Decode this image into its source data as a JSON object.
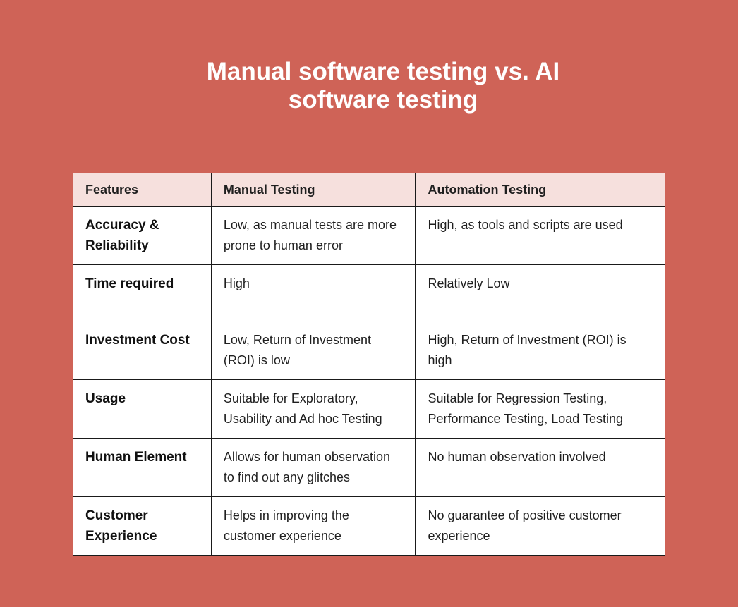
{
  "title": {
    "line1": "Manual software testing vs. AI",
    "line2": "software testing"
  },
  "colors": {
    "background": "#CF6357",
    "header_bg": "#F6E0DD"
  },
  "table": {
    "headers": [
      "Features",
      "Manual Testing",
      "Automation Testing"
    ],
    "rows": [
      [
        "Accuracy & Reliability",
        "Low, as manual tests are more prone to human error",
        "High, as tools and scripts are used"
      ],
      [
        "Time required",
        "High",
        "Relatively Low"
      ],
      [
        "Investment Cost",
        "Low, Return of Investment (ROI) is low",
        "High, Return of Investment (ROI) is high"
      ],
      [
        "Usage",
        "Suitable for Exploratory, Usability and Ad hoc Testing",
        "Suitable for Regression Testing, Performance Testing, Load Testing"
      ],
      [
        "Human Element",
        "Allows for human observation to find out any glitches",
        "No human observation involved"
      ],
      [
        "Customer Experience",
        "Helps in improving the customer experience",
        "No guarantee of positive customer experience"
      ]
    ]
  }
}
